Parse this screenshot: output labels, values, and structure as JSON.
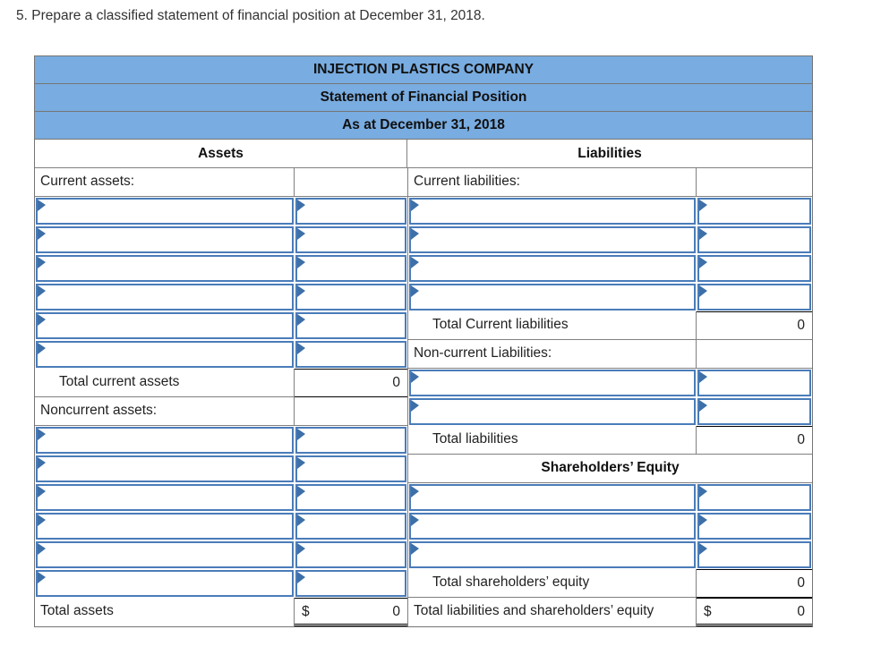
{
  "instruction": "5. Prepare a classified statement of financial position at December 31, 2018.",
  "statement": {
    "titles": {
      "company": "INJECTION PLASTICS COMPANY",
      "report": "Statement of Financial Position",
      "date": "As at December 31, 2018"
    },
    "assets": {
      "header": "Assets",
      "current_label": "Current assets:",
      "total_current_label": "Total current assets",
      "total_current_value": "0",
      "noncurrent_label": "Noncurrent assets:",
      "total_label": "Total assets",
      "total_currency": "$",
      "total_value": "0"
    },
    "liabilities": {
      "header": "Liabilities",
      "current_label": "Current liabilities:",
      "total_current_label": "Total Current liabilities",
      "total_current_value": "0",
      "noncurrent_label": "Non-current Liabilities:",
      "total_label": "Total liabilities",
      "total_value": "0"
    },
    "equity": {
      "header": "Shareholders’ Equity",
      "total_label": "Total shareholders’ equity",
      "total_value": "0",
      "grand_total_label": "Total liabilities and shareholders’ equity",
      "grand_total_currency": "$",
      "grand_total_value": "0"
    },
    "colors": {
      "header_bg": "#79ace0",
      "input_border": "#4a7cb9",
      "flag_icon": "#3d6fa8",
      "grid_line": "#808080",
      "total_rule": "#000000"
    }
  }
}
